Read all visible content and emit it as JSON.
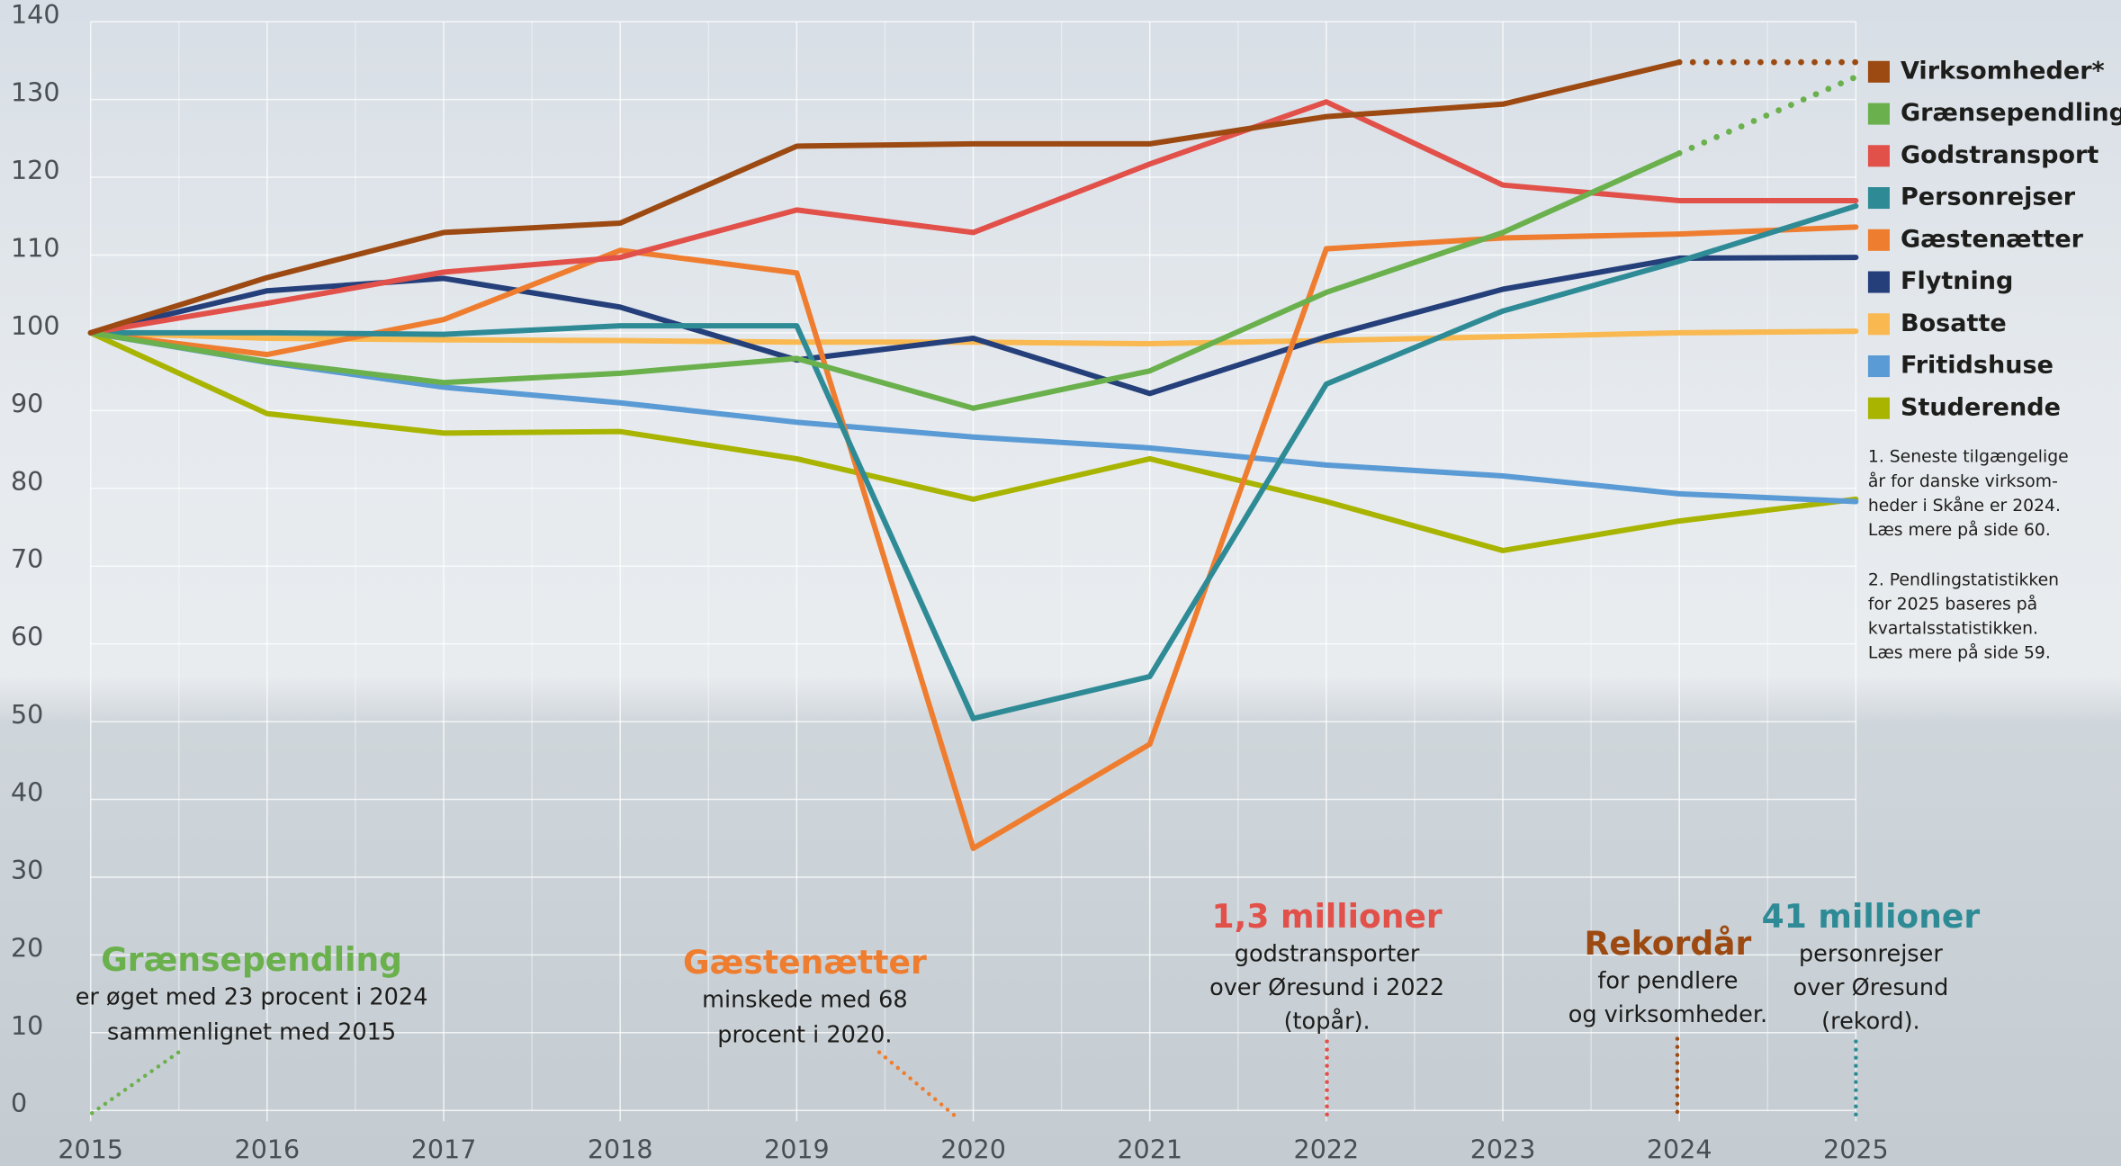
{
  "chart_data": {
    "type": "line",
    "x": [
      2015,
      2016,
      2017,
      2018,
      2019,
      2020,
      2021,
      2022,
      2023,
      2024,
      2025
    ],
    "xlim": [
      2015,
      2025
    ],
    "xticks": [
      2015,
      2016,
      2017,
      2018,
      2019,
      2020,
      2021,
      2022,
      2023,
      2024,
      2025
    ],
    "ylim": [
      0,
      140
    ],
    "yticks": [
      0,
      10,
      20,
      30,
      40,
      50,
      60,
      70,
      80,
      90,
      100,
      110,
      120,
      130,
      140
    ],
    "grid": true,
    "legend": "right",
    "series": [
      {
        "name": "Virksomheder*",
        "color": "#9c4a12",
        "values": [
          100,
          107.1,
          112.9,
          114.1,
          124,
          124.3,
          124.3,
          127.8,
          129.4,
          134.8,
          134.8
        ],
        "projected_from": 9
      },
      {
        "name": "Grænsependling*",
        "color": "#6ab04c",
        "values": [
          100,
          96.3,
          93.6,
          94.8,
          96.7,
          90.3,
          95.1,
          105.2,
          112.9,
          123.1,
          132.9
        ],
        "projected_from": 9
      },
      {
        "name": "Godstransport",
        "color": "#e2504a",
        "values": [
          100,
          103.8,
          107.8,
          109.7,
          115.8,
          112.9,
          121.7,
          129.7,
          119,
          117,
          117
        ]
      },
      {
        "name": "Personrejser",
        "color": "#2e8b96",
        "values": [
          100,
          100,
          99.8,
          100.9,
          100.9,
          50.4,
          55.8,
          93.4,
          102.8,
          109.2,
          116.3
        ]
      },
      {
        "name": "Gæstenætter",
        "color": "#ef7d2f",
        "values": [
          100,
          97.2,
          101.7,
          110.6,
          107.7,
          33.7,
          47.1,
          110.8,
          112.2,
          112.7,
          113.6
        ]
      },
      {
        "name": "Flytning",
        "color": "#243f7a",
        "values": [
          100,
          105.4,
          107,
          103.3,
          96.5,
          99.3,
          92.2,
          99.5,
          105.6,
          109.6,
          109.7
        ]
      },
      {
        "name": "Bosatte",
        "color": "#f9b850",
        "values": [
          100,
          99.3,
          99.1,
          99,
          98.8,
          98.8,
          98.6,
          99,
          99.5,
          100,
          100.2
        ]
      },
      {
        "name": "Fritidshuse",
        "color": "#5b9bd5",
        "values": [
          100,
          96.2,
          93,
          91,
          88.5,
          86.6,
          85.2,
          83,
          81.6,
          79.3,
          78.3
        ]
      },
      {
        "name": "Studerende",
        "color": "#a8b400",
        "values": [
          100,
          89.6,
          87.1,
          87.3,
          83.8,
          78.6,
          83.8,
          78.3,
          72,
          75.8,
          78.6
        ]
      }
    ],
    "footnotes": [
      [
        "1. Seneste tilgængelige",
        "år for danske virksom-",
        "heder i Skåne er 2024.",
        "Læs mere på side 60."
      ],
      [
        "2. Pendlingstatistikken",
        "for 2025 baseres på",
        "kvartalsstatistikken.",
        "Læs mere på side 59."
      ]
    ],
    "annotations": [
      {
        "title": "Grænsependling",
        "color": "#6ab04c",
        "lines": [
          "er øget med 23 procent i 2024",
          "sammenlignet med 2015"
        ]
      },
      {
        "title": "Gæstenætter",
        "color": "#ef7d2f",
        "lines": [
          "minskede med 68",
          "procent i 2020."
        ]
      },
      {
        "title": "1,3 millioner",
        "color": "#e2504a",
        "lines": [
          "godstransporter",
          "over Øresund i 2022",
          "(topår)."
        ]
      },
      {
        "title": "Rekordår",
        "color": "#9c4a12",
        "lines": [
          "for pendlere",
          "og virksomheder."
        ]
      },
      {
        "title": "41 millioner",
        "color": "#2e8b96",
        "lines": [
          "personrejser",
          "over Øresund",
          "(rekord)."
        ]
      }
    ]
  }
}
